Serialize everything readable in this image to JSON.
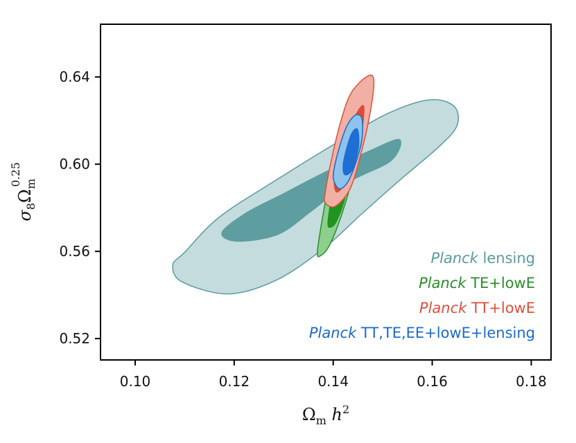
{
  "chart_data": {
    "type": "contour",
    "xlabel": "Ωm h²",
    "ylabel": "σ8Ωm^0.25",
    "xlim": [
      0.093,
      0.184
    ],
    "ylim": [
      0.5102,
      0.6642
    ],
    "x_ticks": [
      "0.10",
      "0.12",
      "0.14",
      "0.16",
      "0.18"
    ],
    "x_tick_values": [
      0.1,
      0.12,
      0.14,
      0.16,
      0.18
    ],
    "y_ticks": [
      "0.52",
      "0.56",
      "0.60",
      "0.64"
    ],
    "y_tick_values": [
      0.52,
      0.56,
      0.6,
      0.64
    ],
    "legend_position": "lower-right",
    "series": [
      {
        "name": "Planck lensing",
        "name_italic": "Planck",
        "name_rest": " lensing",
        "color": "#5b9aa0",
        "outer_fill": "#c4dcdd",
        "inner_fill": "#5f9ea0",
        "contours_95": [
          [
            0.1101,
            0.5598
          ],
          [
            0.1171,
            0.5759
          ],
          [
            0.1291,
            0.5936
          ],
          [
            0.1406,
            0.6097
          ],
          [
            0.151,
            0.6232
          ],
          [
            0.1594,
            0.6295
          ],
          [
            0.1644,
            0.6266
          ],
          [
            0.165,
            0.6177
          ],
          [
            0.1614,
            0.6081
          ],
          [
            0.1535,
            0.5928
          ],
          [
            0.1459,
            0.5775
          ],
          [
            0.1381,
            0.5614
          ],
          [
            0.1286,
            0.5469
          ],
          [
            0.1188,
            0.5405
          ],
          [
            0.1095,
            0.546
          ],
          [
            0.1076,
            0.5537
          ]
        ],
        "contours_68": [
          [
            0.1175,
            0.5686
          ],
          [
            0.1223,
            0.5775
          ],
          [
            0.1302,
            0.5868
          ],
          [
            0.1387,
            0.5968
          ],
          [
            0.1473,
            0.6061
          ],
          [
            0.1534,
            0.6113
          ],
          [
            0.1517,
            0.6016
          ],
          [
            0.1434,
            0.592
          ],
          [
            0.1355,
            0.5783
          ],
          [
            0.1289,
            0.5678
          ],
          [
            0.1207,
            0.5646
          ]
        ]
      },
      {
        "name": "Planck TE+lowE",
        "name_italic": "Planck",
        "name_rest": " TE+lowE",
        "color": "#2a8c2a",
        "outer_fill": "#8cd08c",
        "inner_fill": "#1f941f",
        "contours_95": [
          [
            0.1368,
            0.5598
          ],
          [
            0.138,
            0.5775
          ],
          [
            0.1396,
            0.5968
          ],
          [
            0.1413,
            0.6129
          ],
          [
            0.1437,
            0.6177
          ],
          [
            0.1451,
            0.6113
          ],
          [
            0.144,
            0.5952
          ],
          [
            0.1418,
            0.5775
          ],
          [
            0.1393,
            0.563
          ],
          [
            0.1375,
            0.5581
          ]
        ],
        "contours_68": [
          [
            0.1389,
            0.5727
          ],
          [
            0.1396,
            0.584
          ],
          [
            0.1408,
            0.5936
          ],
          [
            0.1427,
            0.5968
          ],
          [
            0.1425,
            0.5856
          ],
          [
            0.1408,
            0.5743
          ],
          [
            0.1396,
            0.5711
          ]
        ]
      },
      {
        "name": "Planck TT+lowE",
        "name_italic": "Planck",
        "name_rest": " TT+lowE",
        "color": "#d9503a",
        "outer_fill": "#f2b0a4",
        "inner_fill": "#e24a33",
        "contours_95": [
          [
            0.1384,
            0.5871
          ],
          [
            0.1396,
            0.6016
          ],
          [
            0.1413,
            0.6177
          ],
          [
            0.1435,
            0.6322
          ],
          [
            0.1468,
            0.6402
          ],
          [
            0.1482,
            0.6386
          ],
          [
            0.1475,
            0.6241
          ],
          [
            0.1456,
            0.6048
          ],
          [
            0.1434,
            0.5887
          ],
          [
            0.1404,
            0.5807
          ],
          [
            0.1384,
            0.5823
          ]
        ],
        "contours_68": [
          [
            0.1402,
            0.592
          ],
          [
            0.1413,
            0.6032
          ],
          [
            0.143,
            0.6145
          ],
          [
            0.1449,
            0.6241
          ],
          [
            0.1462,
            0.6264
          ],
          [
            0.1458,
            0.6145
          ],
          [
            0.1445,
            0.6016
          ],
          [
            0.1426,
            0.592
          ],
          [
            0.1408,
            0.5871
          ]
        ]
      },
      {
        "name": "Planck TT,TE,EE+lowE+lensing",
        "name_italic": "Planck",
        "name_rest": " TT,TE,EE+lowE+lensing",
        "color": "#1a6ac9",
        "outer_fill": "#8ec3ec",
        "inner_fill": "#1f6ed4",
        "contours_95": [
          [
            0.1401,
            0.5968
          ],
          [
            0.1413,
            0.6081
          ],
          [
            0.1428,
            0.6177
          ],
          [
            0.1445,
            0.6225
          ],
          [
            0.1458,
            0.6209
          ],
          [
            0.1458,
            0.6113
          ],
          [
            0.1447,
            0.6016
          ],
          [
            0.143,
            0.592
          ],
          [
            0.1413,
            0.5887
          ],
          [
            0.1402,
            0.592
          ]
        ],
        "contours_68": [
          [
            0.142,
            0.6
          ],
          [
            0.1428,
            0.6081
          ],
          [
            0.1438,
            0.6145
          ],
          [
            0.1449,
            0.6161
          ],
          [
            0.1452,
            0.6097
          ],
          [
            0.1447,
            0.6032
          ],
          [
            0.1437,
            0.5968
          ],
          [
            0.1423,
            0.5952
          ]
        ]
      }
    ]
  }
}
